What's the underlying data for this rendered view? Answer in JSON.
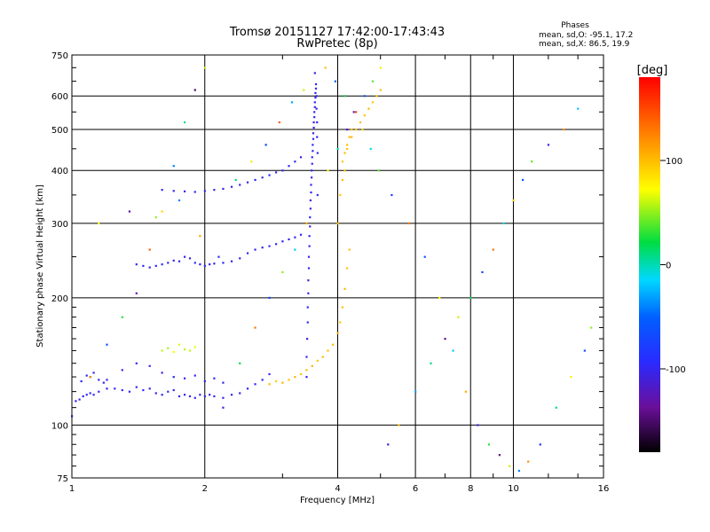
{
  "chart_data": {
    "type": "scatter",
    "title": "Tromsø 20151127 17:42:00-17:43:43",
    "subtitle": "RwPretec (8p)",
    "xlabel": "Frequency [MHz]",
    "ylabel": "Stationary phase Virtual Height [km]",
    "x_scale": "log",
    "y_scale": "log",
    "xlim": [
      1,
      16
    ],
    "ylim": [
      75,
      750
    ],
    "x_ticks": [
      1,
      2,
      4,
      6,
      8,
      10,
      16
    ],
    "x_tick_labels": [
      "1",
      "2",
      "4",
      "6",
      "8",
      "10",
      "16"
    ],
    "y_ticks": [
      75,
      100,
      200,
      300,
      400,
      500,
      600,
      750
    ],
    "y_tick_labels": [
      "75",
      "100",
      "200",
      "300",
      "400",
      "500",
      "600",
      "750"
    ],
    "grid": true,
    "stats": {
      "heading": "Phases",
      "line1": "mean, sd,O: -95.1, 17.2",
      "line2": "mean, sd,X:  86.5, 19.9"
    },
    "colorbar": {
      "label": "[deg]",
      "range": [
        -180,
        180
      ],
      "ticks": [
        100,
        0,
        -100
      ],
      "tick_labels": [
        "100",
        "0",
        "-100"
      ]
    },
    "series": [
      {
        "x": [
          1.02,
          1.04,
          1.06,
          1.08,
          1.1,
          1.12,
          1.15,
          1.2,
          1.25,
          1.3,
          1.35,
          1.4,
          1.45,
          1.5,
          1.55,
          1.6,
          1.65,
          1.7,
          1.75,
          1.8,
          1.85,
          1.9,
          1.95,
          2.0,
          2.05,
          2.1,
          2.2,
          2.3,
          2.4,
          2.5,
          2.6,
          2.7,
          2.8,
          1.1,
          1.2,
          1.3,
          1.4,
          1.5,
          1.6,
          1.7,
          1.8,
          1.9,
          2.0,
          2.1,
          2.2,
          1.05,
          1.08,
          1.12,
          1.15,
          1.18
        ],
        "y": [
          114,
          115,
          117,
          118,
          119,
          118,
          120,
          122,
          122,
          121,
          120,
          123,
          121,
          122,
          119,
          118,
          120,
          121,
          117,
          118,
          117,
          116,
          118,
          117,
          118,
          117,
          116,
          118,
          119,
          122,
          125,
          128,
          132,
          130,
          128,
          135,
          140,
          138,
          133,
          130,
          129,
          131,
          127,
          129,
          126,
          127,
          131,
          133,
          128,
          126
        ],
        "phase": [
          -100,
          -98,
          -102,
          -96,
          -95,
          -100,
          -105,
          -98,
          -99,
          -103,
          -97,
          -101,
          -95,
          -100,
          -104,
          -96,
          -99,
          -102,
          -97,
          -100,
          -98,
          -101,
          -96,
          -99,
          -103,
          -97,
          -100,
          -95,
          -98,
          -102,
          -96,
          -99,
          -101,
          -98,
          -100,
          -104,
          -97,
          -99,
          -101,
          -96,
          -103,
          -98,
          -100,
          -95,
          -102,
          -99,
          -97,
          -101,
          -100,
          -98
        ]
      },
      {
        "x": [
          1.4,
          1.45,
          1.5,
          1.55,
          1.6,
          1.65,
          1.7,
          1.75,
          1.8,
          1.85,
          1.9,
          1.95,
          2.0,
          2.05,
          2.1,
          2.2,
          2.3,
          2.4,
          2.5,
          2.6,
          2.7,
          2.8,
          2.9,
          3.0,
          3.1,
          3.2,
          3.3
        ],
        "y": [
          240,
          238,
          236,
          238,
          240,
          242,
          245,
          244,
          250,
          248,
          242,
          240,
          238,
          240,
          241,
          242,
          244,
          248,
          255,
          260,
          263,
          265,
          268,
          272,
          275,
          278,
          282
        ],
        "phase": [
          -100,
          -98,
          -102,
          -96,
          -95,
          -100,
          -105,
          -98,
          -99,
          -103,
          -97,
          -101,
          -95,
          -100,
          -104,
          -96,
          -99,
          -102,
          -97,
          -100,
          -98,
          -101,
          -96,
          -99,
          -103,
          -97,
          -100
        ]
      },
      {
        "x": [
          1.6,
          1.7,
          1.8,
          1.9,
          2.0,
          2.1,
          2.2,
          2.3,
          2.4,
          2.5,
          2.6,
          2.7,
          2.8,
          2.9,
          3.0,
          3.1,
          3.2,
          3.3
        ],
        "y": [
          360,
          358,
          357,
          356,
          358,
          360,
          362,
          366,
          370,
          375,
          380,
          385,
          390,
          396,
          400,
          410,
          420,
          430
        ],
        "phase": [
          -100,
          -98,
          -102,
          -96,
          -95,
          -100,
          -105,
          -98,
          -99,
          -103,
          -97,
          -101,
          -95,
          -100,
          -104,
          -96,
          -99,
          -102
        ]
      },
      {
        "x": [
          3.4,
          3.4,
          3.41,
          3.42,
          3.42,
          3.43,
          3.43,
          3.44,
          3.44,
          3.45,
          3.45,
          3.46,
          3.46,
          3.47,
          3.47,
          3.48,
          3.48,
          3.49,
          3.49,
          3.5,
          3.5,
          3.51,
          3.51,
          3.52,
          3.52,
          3.53,
          3.53,
          3.54,
          3.54,
          3.55,
          3.55,
          3.56,
          3.56,
          3.57,
          3.57,
          3.58,
          3.58,
          3.59,
          3.59,
          3.6
        ],
        "y": [
          130,
          145,
          160,
          175,
          190,
          205,
          220,
          235,
          250,
          265,
          280,
          295,
          310,
          325,
          340,
          355,
          370,
          385,
          400,
          415,
          430,
          445,
          460,
          475,
          490,
          505,
          520,
          535,
          550,
          565,
          580,
          595,
          610,
          625,
          640,
          600,
          560,
          520,
          480,
          440
        ],
        "phase": [
          -100,
          -98,
          -102,
          -96,
          -95,
          -100,
          -105,
          -98,
          -99,
          -103,
          -97,
          -101,
          -95,
          -100,
          -104,
          -96,
          -99,
          -102,
          -97,
          -100,
          -98,
          -101,
          -96,
          -99,
          -103,
          -97,
          -100,
          -95,
          -98,
          -102,
          -96,
          -99,
          -101,
          -98,
          -100,
          -104,
          -97,
          -99,
          -101,
          -96
        ]
      },
      {
        "x": [
          2.8,
          2.9,
          3.0,
          3.1,
          3.2,
          3.3,
          3.4,
          3.5,
          3.6,
          3.7,
          3.8,
          3.9,
          4.0,
          4.05,
          4.1,
          4.15,
          4.2,
          4.25,
          4.1,
          4.15,
          4.2,
          4.3,
          4.4,
          4.5,
          4.6,
          4.7,
          4.8,
          4.9,
          5.0,
          4.0,
          4.05,
          4.1,
          4.15,
          4.2,
          4.25,
          4.3
        ],
        "y": [
          125,
          127,
          126,
          128,
          130,
          132,
          135,
          138,
          142,
          145,
          150,
          155,
          165,
          175,
          190,
          210,
          235,
          260,
          420,
          440,
          460,
          480,
          500,
          520,
          540,
          560,
          580,
          600,
          620,
          300,
          350,
          380,
          400,
          450,
          480,
          500
        ],
        "phase": [
          100,
          95,
          105,
          98,
          102,
          97,
          99,
          104,
          96,
          101,
          98,
          100,
          103,
          95,
          99,
          102,
          97,
          100,
          96,
          101,
          98,
          104,
          99,
          100,
          97,
          102,
          95,
          98,
          101,
          103,
          96,
          100,
          99,
          97,
          102,
          98
        ]
      },
      {
        "x": [
          1.6,
          1.65,
          1.7,
          1.75,
          1.8,
          1.85,
          1.9
        ],
        "y": [
          150,
          152,
          149,
          155,
          151,
          150,
          153
        ],
        "phase": [
          60,
          55,
          70,
          65,
          58,
          62,
          67
        ]
      },
      {
        "x": [
          1.0,
          1.1,
          1.2,
          1.3,
          1.4,
          1.5,
          1.6,
          1.7,
          1.8,
          1.9,
          2.0,
          2.2,
          2.4,
          2.6,
          2.8,
          3.0,
          3.2,
          3.4,
          3.6,
          3.8,
          4.0,
          4.2,
          4.4,
          4.6,
          4.8,
          5.0,
          5.2,
          5.5,
          6.0,
          6.5,
          7.0,
          7.5,
          8.0,
          8.5,
          9.0,
          9.5,
          10.0,
          10.5,
          11.0,
          12.0,
          13.0,
          14.0,
          1.15,
          1.35,
          1.55,
          1.75,
          1.95,
          2.15,
          2.35,
          2.55,
          2.75,
          2.95,
          3.15,
          3.35,
          3.55,
          3.75,
          3.95,
          4.15,
          4.35,
          4.55,
          4.75,
          4.95,
          5.3,
          5.8,
          6.3,
          6.8,
          7.3,
          7.8,
          8.3,
          8.8,
          9.3,
          9.8,
          10.3,
          10.8,
          11.5,
          12.5,
          13.5,
          14.5,
          15.0
        ],
        "y": [
          105,
          130,
          155,
          180,
          205,
          260,
          320,
          410,
          520,
          620,
          700,
          110,
          140,
          170,
          200,
          230,
          260,
          300,
          350,
          400,
          450,
          500,
          550,
          600,
          650,
          700,
          90,
          100,
          120,
          140,
          160,
          180,
          200,
          230,
          260,
          300,
          340,
          380,
          420,
          460,
          500,
          560,
          300,
          320,
          310,
          340,
          280,
          250,
          380,
          420,
          460,
          520,
          580,
          620,
          680,
          700,
          650,
          600,
          550,
          500,
          450,
          400,
          350,
          300,
          250,
          200,
          150,
          120,
          100,
          90,
          85,
          80,
          78,
          82,
          90,
          110,
          130,
          150,
          170
        ],
        "phase": [
          -80,
          120,
          -60,
          30,
          -130,
          140,
          90,
          -40,
          10,
          -150,
          60,
          -100,
          20,
          130,
          -70,
          50,
          -20,
          110,
          -90,
          70,
          0,
          -120,
          150,
          -50,
          40,
          80,
          -110,
          100,
          -30,
          10,
          -140,
          60,
          20,
          -80,
          130,
          -10,
          90,
          -60,
          40,
          -100,
          120,
          -20,
          70,
          -130,
          50,
          -40,
          110,
          -90,
          10,
          80,
          -70,
          140,
          -30,
          60,
          -110,
          100,
          -50,
          20,
          -120,
          90,
          -10,
          40,
          -80,
          130,
          -60,
          70,
          -20,
          110,
          -100,
          30,
          -140,
          60,
          -40,
          120,
          -90,
          10,
          80,
          -70,
          50
        ]
      }
    ]
  }
}
